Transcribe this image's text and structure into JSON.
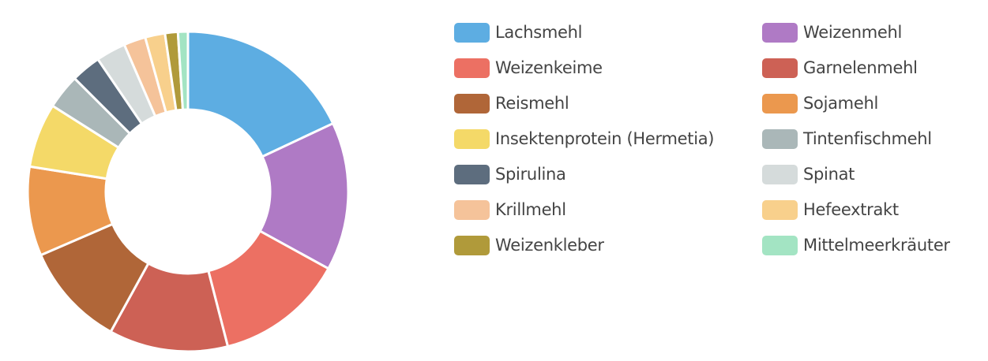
{
  "chart_data": {
    "type": "pie",
    "donut": true,
    "legend_position": "right",
    "categories": [
      "Lachsmehl",
      "Weizenmehl",
      "Weizenkeime",
      "Garnelenmehl",
      "Reismehl",
      "Sojamehl",
      "Insektenprotein (Hermetia)",
      "Tintenfischmehl",
      "Spirulina",
      "Spinat",
      "Krillmehl",
      "Hefeextrakt",
      "Weizenkleber",
      "Mittelmeerkräuter"
    ],
    "values": [
      18,
      15,
      13,
      12,
      10.5,
      9,
      6.5,
      3.5,
      3,
      3,
      2.2,
      2,
      1.3,
      1
    ],
    "colors": [
      "#5dade2",
      "#af7ac5",
      "#ec7063",
      "#cd6155",
      "#b06638",
      "#eb984e",
      "#f4d968",
      "#aab7b8",
      "#5d6d7e",
      "#d5dbdb",
      "#f5c39a",
      "#f8d08c",
      "#b09a3a",
      "#a3e4c3"
    ]
  }
}
